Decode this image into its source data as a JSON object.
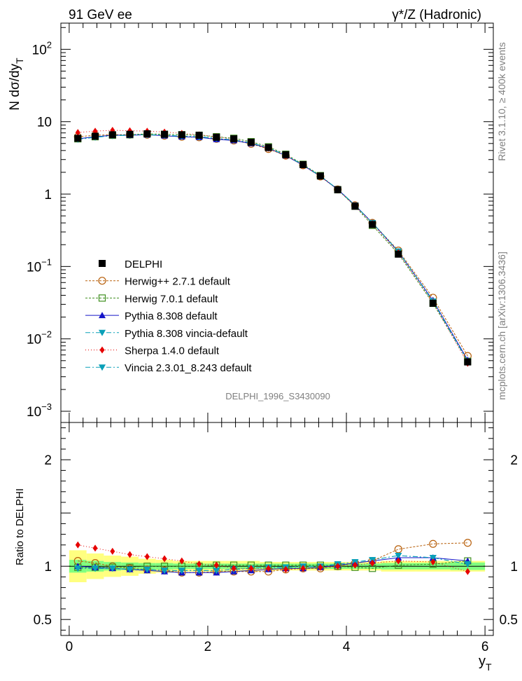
{
  "header": {
    "left": "91 GeV ee",
    "right": "γ*/Z (Hadronic)"
  },
  "side_text": {
    "rivet": "Rivet 3.1.10, ≥ 400k events",
    "mcplots": "mcplots.cern.ch [arXiv:1306.3436]"
  },
  "watermark": "DELPHI_1996_S3430090",
  "colors": {
    "delphi": "#000000",
    "herwigpp": "#b8600c",
    "herwig7": "#3f8f1f",
    "pythia": "#1414c8",
    "vincia": "#0aa0b8",
    "sherpa": "#e60000",
    "band_yellow": "#ffff80",
    "band_green": "#80ff80"
  },
  "chart_data": [
    {
      "type": "scatter",
      "title": "91 GeV ee",
      "ylabel": "N dσ/dy_T",
      "yscale": "log",
      "ylim": [
        0.0007,
        230
      ],
      "xlim": [
        -0.12,
        6.12
      ],
      "yticks": [
        {
          "value": 100,
          "label_base": "10",
          "label_exp": "2"
        },
        {
          "value": 10,
          "label_base": "10",
          "label_exp": ""
        },
        {
          "value": 1,
          "label_base": "1",
          "label_exp": ""
        },
        {
          "value": 0.1,
          "label_base": "10",
          "label_exp": "−1"
        },
        {
          "value": 0.01,
          "label_base": "10",
          "label_exp": "−2"
        },
        {
          "value": 0.001,
          "label_base": "10",
          "label_exp": "−3"
        }
      ],
      "x": [
        0.125,
        0.375,
        0.625,
        0.875,
        1.125,
        1.375,
        1.625,
        1.875,
        2.125,
        2.375,
        2.625,
        2.875,
        3.125,
        3.375,
        3.625,
        3.875,
        4.125,
        4.375,
        4.75,
        5.25,
        5.75
      ],
      "series": [
        {
          "name": "DELPHI",
          "key": "delphi",
          "marker": "square-filled",
          "values": [
            5.9,
            6.3,
            6.6,
            6.7,
            6.8,
            6.7,
            6.6,
            6.5,
            6.1,
            5.8,
            5.2,
            4.4,
            3.5,
            2.55,
            1.78,
            1.15,
            0.68,
            0.38,
            0.148,
            0.031,
            0.0048
          ]
        },
        {
          "name": "Herwig++ 2.7.1 default",
          "key": "herwigpp",
          "marker": "circle-open",
          "dash": "3,2",
          "values": [
            6.2,
            6.5,
            6.6,
            6.6,
            6.6,
            6.4,
            6.2,
            6.1,
            5.8,
            5.5,
            4.95,
            4.2,
            3.4,
            2.5,
            1.75,
            1.16,
            0.7,
            0.4,
            0.166,
            0.037,
            0.0058
          ]
        },
        {
          "name": "Herwig 7.0.1 default",
          "key": "herwig7",
          "marker": "square-open",
          "dash": "3,2",
          "values": [
            5.8,
            6.2,
            6.5,
            6.6,
            6.8,
            6.7,
            6.6,
            6.5,
            6.2,
            5.9,
            5.3,
            4.5,
            3.55,
            2.58,
            1.8,
            1.15,
            0.68,
            0.37,
            0.15,
            0.031,
            0.0049
          ]
        },
        {
          "name": "Pythia 8.308 default",
          "key": "pythia",
          "marker": "triangle-up",
          "dash": "",
          "values": [
            5.8,
            6.2,
            6.5,
            6.5,
            6.6,
            6.4,
            6.2,
            6.1,
            5.7,
            5.5,
            5.0,
            4.3,
            3.4,
            2.5,
            1.76,
            1.16,
            0.7,
            0.4,
            0.16,
            0.034,
            0.0051
          ]
        },
        {
          "name": "Pythia 8.308 vincia-default",
          "key": "vincia",
          "marker": "triangle-down",
          "dash": "7,3,2,3",
          "values": [
            5.7,
            6.1,
            6.4,
            6.5,
            6.6,
            6.5,
            6.3,
            6.2,
            5.9,
            5.6,
            5.1,
            4.35,
            3.45,
            2.52,
            1.77,
            1.17,
            0.7,
            0.4,
            0.162,
            0.033,
            0.0049
          ]
        },
        {
          "name": "Sherpa 1.4.0 default",
          "key": "sherpa",
          "marker": "diamond",
          "dash": "1,3",
          "values": [
            7.1,
            7.4,
            7.6,
            7.5,
            7.4,
            7.2,
            6.9,
            6.6,
            6.2,
            5.7,
            5.1,
            4.3,
            3.4,
            2.5,
            1.76,
            1.15,
            0.69,
            0.39,
            0.155,
            0.032,
            0.0046
          ]
        },
        {
          "name": "Vincia 2.3.01_8.243 default",
          "key": "vincia",
          "marker": "triangle-down",
          "dash": "7,3,2,3",
          "values": [
            5.7,
            6.1,
            6.4,
            6.5,
            6.6,
            6.5,
            6.3,
            6.2,
            5.9,
            5.6,
            5.1,
            4.35,
            3.45,
            2.52,
            1.77,
            1.17,
            0.7,
            0.4,
            0.162,
            0.033,
            0.0049
          ]
        }
      ]
    },
    {
      "type": "line",
      "ylabel": "Ratio to DELPHI",
      "xlabel_base": "y",
      "xlabel_sub": "T",
      "ylim": [
        0.35,
        2.35
      ],
      "xlim": [
        -0.12,
        6.12
      ],
      "yticks": [
        {
          "value": 2,
          "label": "2"
        },
        {
          "value": 1,
          "label": "1"
        },
        {
          "value": 0.5,
          "label": "0.5"
        }
      ],
      "xticks": [
        {
          "value": 0,
          "label": "0"
        },
        {
          "value": 2,
          "label": "2"
        },
        {
          "value": 4,
          "label": "4"
        },
        {
          "value": 6,
          "label": "6"
        }
      ],
      "x": [
        0.125,
        0.375,
        0.625,
        0.875,
        1.125,
        1.375,
        1.625,
        1.875,
        2.125,
        2.375,
        2.625,
        2.875,
        3.125,
        3.375,
        3.625,
        3.875,
        4.125,
        4.375,
        4.75,
        5.25,
        5.75
      ],
      "bins": [
        [
          0,
          0.25
        ],
        [
          0.25,
          0.5
        ],
        [
          0.5,
          0.75
        ],
        [
          0.75,
          1.0
        ],
        [
          1.0,
          1.25
        ],
        [
          1.25,
          1.5
        ],
        [
          1.5,
          1.75
        ],
        [
          1.75,
          2.0
        ],
        [
          2.0,
          2.25
        ],
        [
          2.25,
          2.5
        ],
        [
          2.5,
          2.75
        ],
        [
          2.75,
          3.0
        ],
        [
          3.0,
          3.25
        ],
        [
          3.25,
          3.5
        ],
        [
          3.5,
          3.75
        ],
        [
          3.75,
          4.0
        ],
        [
          4.0,
          4.25
        ],
        [
          4.25,
          4.5
        ],
        [
          4.5,
          5.0
        ],
        [
          5.0,
          5.5
        ],
        [
          5.5,
          6.0
        ]
      ],
      "band_yellow": [
        0.15,
        0.12,
        0.1,
        0.09,
        0.07,
        0.06,
        0.05,
        0.05,
        0.05,
        0.05,
        0.05,
        0.04,
        0.04,
        0.04,
        0.04,
        0.04,
        0.04,
        0.04,
        0.05,
        0.05,
        0.05
      ],
      "band_green": [
        0.06,
        0.05,
        0.04,
        0.035,
        0.03,
        0.03,
        0.025,
        0.025,
        0.025,
        0.025,
        0.025,
        0.025,
        0.025,
        0.025,
        0.025,
        0.025,
        0.025,
        0.025,
        0.03,
        0.03,
        0.035
      ],
      "series": [
        {
          "name": "Herwig++ 2.7.1 default",
          "key": "herwigpp",
          "marker": "circle-open",
          "dash": "3,2",
          "values": [
            1.05,
            1.03,
            1.0,
            0.98,
            0.97,
            0.96,
            0.94,
            0.94,
            0.95,
            0.95,
            0.95,
            0.95,
            0.97,
            0.98,
            0.98,
            1.0,
            1.03,
            1.05,
            1.16,
            1.21,
            1.22
          ]
        },
        {
          "name": "Herwig 7.0.1 default",
          "key": "herwig7",
          "marker": "square-open",
          "dash": "3,2",
          "values": [
            0.99,
            0.99,
            0.99,
            0.99,
            1.0,
            1.0,
            1.0,
            1.0,
            1.01,
            1.01,
            1.01,
            1.01,
            1.01,
            1.01,
            1.01,
            1.0,
            0.99,
            0.98,
            1.01,
            1.02,
            1.05
          ]
        },
        {
          "name": "Pythia 8.308 default",
          "key": "pythia",
          "marker": "triangle-up",
          "dash": "",
          "values": [
            1.0,
            0.99,
            0.98,
            0.97,
            0.96,
            0.95,
            0.94,
            0.94,
            0.94,
            0.95,
            0.96,
            0.97,
            0.98,
            0.98,
            0.99,
            1.01,
            1.03,
            1.05,
            1.08,
            1.08,
            1.05
          ]
        },
        {
          "name": "Pythia 8.308 vincia-default",
          "key": "vincia",
          "marker": "triangle-down",
          "dash": "7,3,2,3",
          "values": [
            0.98,
            0.98,
            0.98,
            0.97,
            0.97,
            0.96,
            0.96,
            0.96,
            0.96,
            0.97,
            0.98,
            0.99,
            0.99,
            1.0,
            1.0,
            1.02,
            1.04,
            1.06,
            1.1,
            1.08,
            1.02
          ]
        },
        {
          "name": "Sherpa 1.4.0 default",
          "key": "sherpa",
          "marker": "diamond",
          "dash": "1,3",
          "values": [
            1.2,
            1.17,
            1.14,
            1.11,
            1.09,
            1.07,
            1.05,
            1.02,
            1.01,
            0.98,
            0.98,
            0.98,
            0.97,
            0.98,
            0.99,
            1.0,
            1.01,
            1.03,
            1.05,
            1.04,
            0.95
          ]
        },
        {
          "name": "Vincia 2.3.01_8.243 default",
          "key": "vincia",
          "marker": "triangle-down",
          "dash": "7,3,2,3",
          "values": [
            0.98,
            0.98,
            0.98,
            0.97,
            0.97,
            0.96,
            0.96,
            0.96,
            0.96,
            0.97,
            0.98,
            0.99,
            0.99,
            1.0,
            1.0,
            1.02,
            1.04,
            1.06,
            1.1,
            1.08,
            1.02
          ]
        }
      ]
    }
  ]
}
